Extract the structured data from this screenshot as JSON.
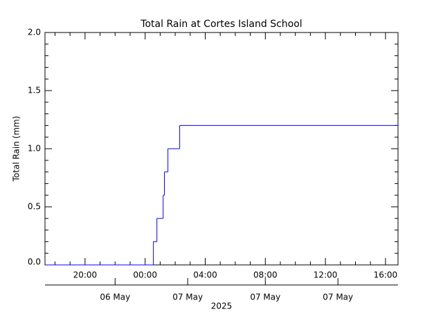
{
  "chart_data": {
    "type": "step",
    "title": "Total Rain at Cortes Island School",
    "y_label": "Total Rain (mm)",
    "x_label": "2025",
    "x": [
      "2025-05-06 17:20",
      "2025-05-07 00:33",
      "2025-05-07 00:47",
      "2025-05-07 01:12",
      "2025-05-07 01:17",
      "2025-05-07 01:31",
      "2025-05-07 02:18",
      "2025-05-07 16:50"
    ],
    "series": [
      {
        "name": "Total Rain",
        "color": "#0000ff",
        "values": [
          0,
          0.2,
          0.4,
          0.6,
          0.8,
          1.0,
          1.2,
          1.2
        ]
      }
    ],
    "xlim": [
      "2025-05-06 17:20",
      "2025-05-07 16:50"
    ],
    "xticks": [
      {
        "value": "2025-05-06 20:00",
        "label": "20:00"
      },
      {
        "value": "2025-05-07 00:00",
        "label": "00:00"
      },
      {
        "value": "2025-05-07 04:00",
        "label": "04:00"
      },
      {
        "value": "2025-05-07 08:00",
        "label": "08:00"
      },
      {
        "value": "2025-05-07 12:00",
        "label": "12:00"
      },
      {
        "value": "2025-05-07 16:00",
        "label": "16:00"
      }
    ],
    "xminor": 4,
    "date_ticks": [
      {
        "value": "2025-05-06 22:00",
        "label": "06 May"
      },
      {
        "value": "2025-05-07 02:50",
        "label": "07 May"
      },
      {
        "value": "2025-05-07 08:00",
        "label": "07 May"
      },
      {
        "value": "2025-05-07 12:50",
        "label": "07 May"
      }
    ],
    "ylim": [
      0,
      2
    ],
    "yticks": [
      {
        "value": 0,
        "label": "0.0"
      },
      {
        "value": 0.5,
        "label": "0.5"
      },
      {
        "value": 1,
        "label": "1.0"
      },
      {
        "value": 1.5,
        "label": "1.5"
      },
      {
        "value": 2,
        "label": "2.0"
      }
    ],
    "yminor": 5
  }
}
